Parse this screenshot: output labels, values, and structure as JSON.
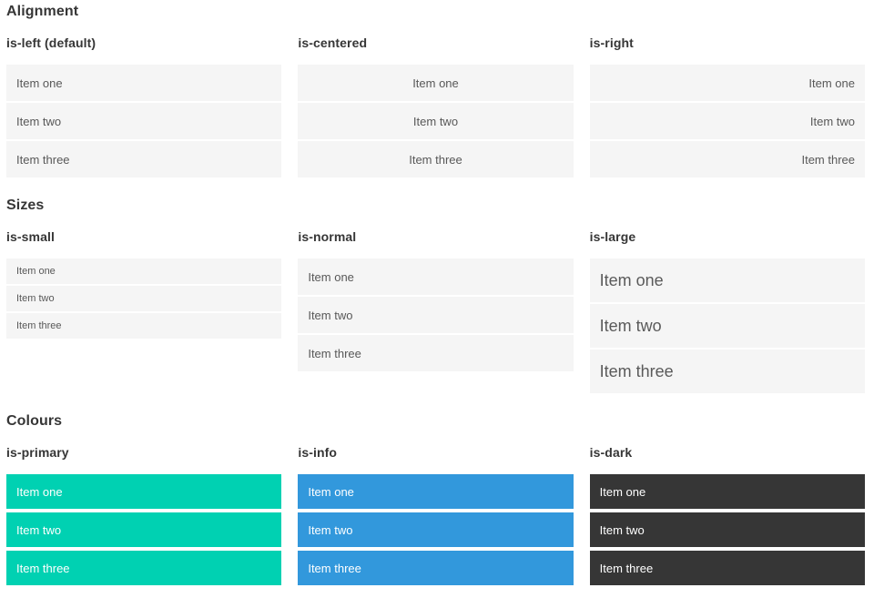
{
  "colors": {
    "item_bg": "#f5f5f5",
    "item_text": "#585858",
    "heading_text": "#363636",
    "primary": "#00d1b2",
    "info": "#3298dc",
    "dark": "#363636",
    "light_text": "#ffffff"
  },
  "sections": [
    {
      "title": "Alignment",
      "groups": [
        {
          "label": "is-left (default)",
          "items": [
            "Item one",
            "Item two",
            "Item three"
          ]
        },
        {
          "label": "is-centered",
          "items": [
            "Item one",
            "Item two",
            "Item three"
          ]
        },
        {
          "label": "is-right",
          "items": [
            "Item one",
            "Item two",
            "Item three"
          ]
        }
      ]
    },
    {
      "title": "Sizes",
      "groups": [
        {
          "label": "is-small",
          "items": [
            "Item one",
            "Item two",
            "Item three"
          ]
        },
        {
          "label": "is-normal",
          "items": [
            "Item one",
            "Item two",
            "Item three"
          ]
        },
        {
          "label": "is-large",
          "items": [
            "Item one",
            "Item two",
            "Item three"
          ]
        }
      ]
    },
    {
      "title": "Colours",
      "groups": [
        {
          "label": "is-primary",
          "items": [
            "Item one",
            "Item two",
            "Item three"
          ]
        },
        {
          "label": "is-info",
          "items": [
            "Item one",
            "Item two",
            "Item three"
          ]
        },
        {
          "label": "is-dark",
          "items": [
            "Item one",
            "Item two",
            "Item three"
          ]
        }
      ]
    }
  ]
}
